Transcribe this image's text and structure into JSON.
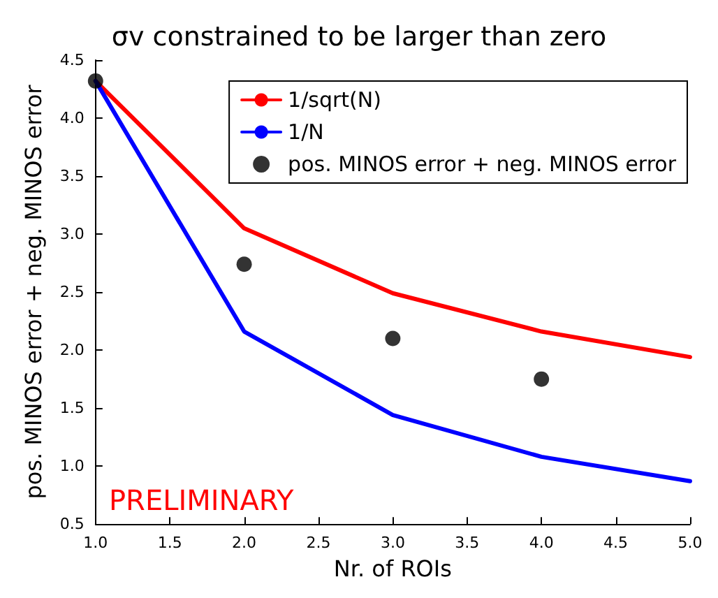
{
  "chart_data": {
    "type": "line",
    "title": "σv constrained to be larger than zero",
    "xlabel": "Nr. of ROIs",
    "ylabel": "pos. MINOS error + neg. MINOS error",
    "x": [
      1,
      2,
      3,
      4,
      5
    ],
    "series": [
      {
        "name": "1/sqrt(N)",
        "color": "#ff0000",
        "values": [
          4.32,
          3.05,
          2.49,
          2.16,
          1.94
        ],
        "marker": "none"
      },
      {
        "name": "1/N",
        "color": "#0000ff",
        "values": [
          4.32,
          2.16,
          1.44,
          1.08,
          0.87
        ],
        "marker": "none"
      },
      {
        "name": "pos. MINOS error + neg. MINOS error",
        "type": "scatter",
        "color": "#000000",
        "x": [
          1,
          2,
          3,
          4
        ],
        "values": [
          4.32,
          2.74,
          2.1,
          1.75
        ],
        "marker": "circle"
      }
    ],
    "xlim": [
      1,
      5
    ],
    "ylim": [
      0.5,
      4.5
    ],
    "xticks": [
      {
        "value": 1,
        "label": "1.0"
      },
      {
        "value": 1.5,
        "label": "1.5"
      },
      {
        "value": 2,
        "label": "2.0"
      },
      {
        "value": 2.5,
        "label": "2.5"
      },
      {
        "value": 3,
        "label": "3.0"
      },
      {
        "value": 3.5,
        "label": "3.5"
      },
      {
        "value": 4,
        "label": "4.0"
      },
      {
        "value": 4.5,
        "label": "4.5"
      },
      {
        "value": 5,
        "label": "5.0"
      }
    ],
    "yticks": [
      {
        "value": 0.5,
        "label": "0.5"
      },
      {
        "value": 1,
        "label": "1.0"
      },
      {
        "value": 1.5,
        "label": "1.5"
      },
      {
        "value": 2,
        "label": "2.0"
      },
      {
        "value": 2.5,
        "label": "2.5"
      },
      {
        "value": 3,
        "label": "3.0"
      },
      {
        "value": 3.5,
        "label": "3.5"
      },
      {
        "value": 4,
        "label": "4.0"
      },
      {
        "value": 4.5,
        "label": "4.5"
      }
    ],
    "annotations": [
      "PRELIMINARY"
    ],
    "legend": "top right",
    "grid": false,
    "line_style": "solid"
  }
}
